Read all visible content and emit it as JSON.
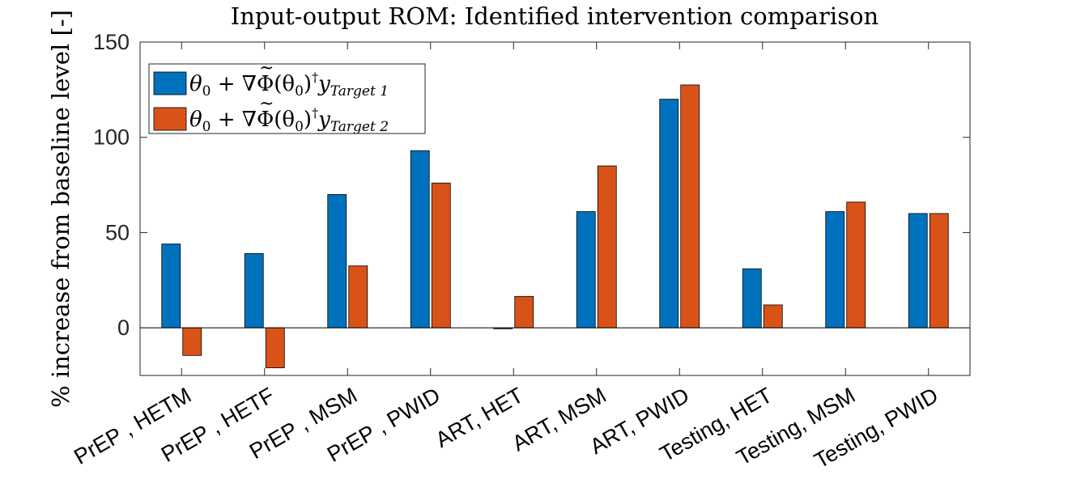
{
  "chart_data": {
    "type": "bar",
    "title": "Input-output ROM: Identified intervention comparison",
    "ylabel": "% increase from baseline level [-]",
    "xlabel": "",
    "ylim": [
      -25,
      150
    ],
    "yticks": [
      0,
      50,
      100,
      150
    ],
    "grid": false,
    "legend_position": "top-left",
    "categories": [
      "PrEP , HETM",
      "PrEP , HETF",
      "PrEP , MSM",
      "PrEP , PWID",
      "ART, HET",
      "ART, MSM",
      "ART, PWID",
      "Testing, HET",
      "Testing, MSM",
      "Testing, PWID"
    ],
    "series": [
      {
        "name": "θ₀ + ∇Φ̃(θ₀)† y_{Target 1}",
        "legend": {
          "base": "θ",
          "sub0": "0",
          "op": " + ∇",
          "phi": "Φ",
          "tilde": "~",
          "arg": "(θ",
          "argsub": "0",
          "close": ")",
          "dagger": "†",
          "y": "y",
          "target": "Target 1"
        },
        "color": "#0072BD",
        "values": [
          44,
          39,
          70,
          93,
          -0.5,
          61,
          120,
          31,
          61,
          60
        ]
      },
      {
        "name": "θ₀ + ∇Φ̃(θ₀)† y_{Target 2}",
        "legend": {
          "base": "θ",
          "sub0": "0",
          "op": " + ∇",
          "phi": "Φ",
          "tilde": "~",
          "arg": "(θ",
          "argsub": "0",
          "close": ")",
          "dagger": "†",
          "y": "y",
          "target": "Target 2"
        },
        "color": "#D95319",
        "values": [
          -14.5,
          -21,
          32.5,
          76,
          16.5,
          85,
          127.5,
          12,
          66,
          60
        ]
      }
    ]
  }
}
